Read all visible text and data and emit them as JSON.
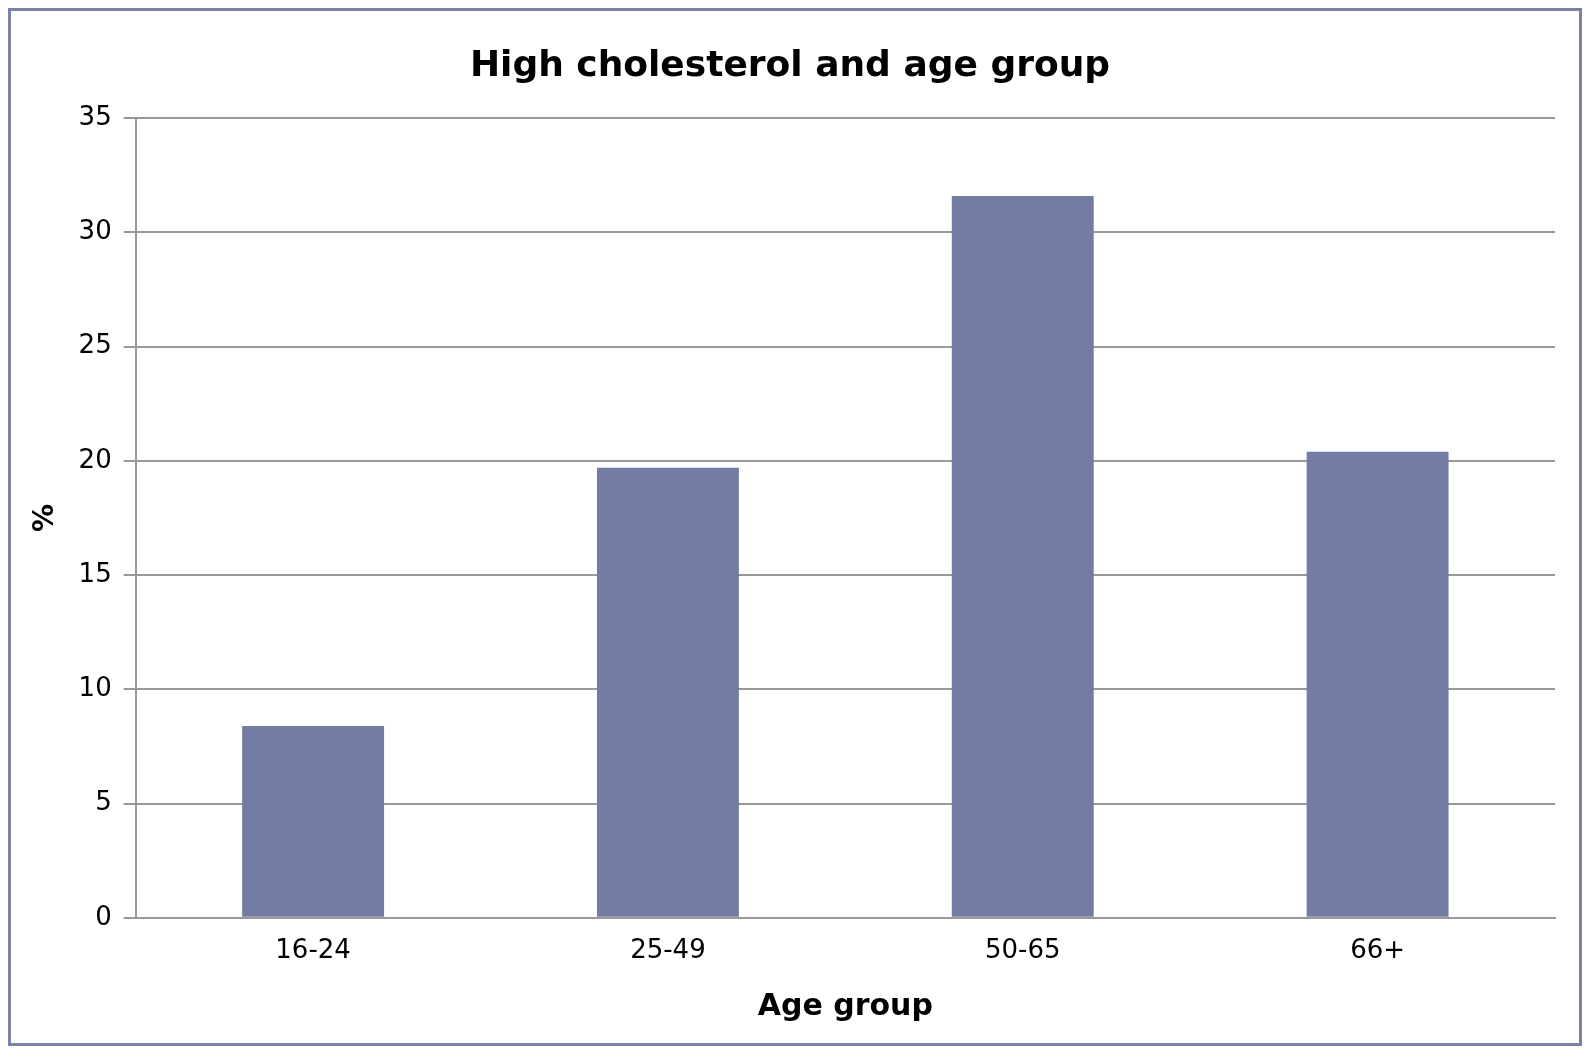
{
  "chart_data": {
    "type": "bar",
    "title": "High cholesterol and age group",
    "xlabel": "Age group",
    "ylabel": "%",
    "categories": [
      "16-24",
      "25-49",
      "50-65",
      "66+"
    ],
    "values": [
      8.4,
      19.7,
      31.6,
      20.4
    ],
    "color": "#737ca2",
    "ylim": [
      0,
      35
    ],
    "yticks": [
      0,
      5,
      10,
      15,
      20,
      25,
      30,
      35
    ],
    "grid": "y",
    "legend": false
  }
}
